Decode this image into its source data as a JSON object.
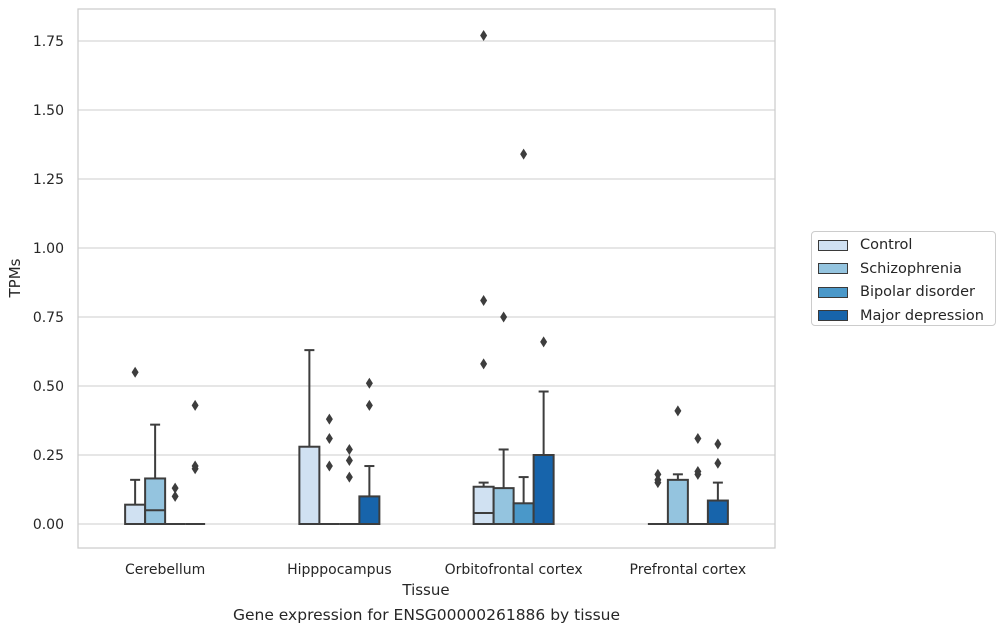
{
  "caption": "Gene expression for ENSG00000261886 by tissue",
  "chart_data": {
    "type": "box",
    "xlabel": "Tissue",
    "ylabel": "TPMs",
    "ylim": [
      -0.085,
      1.86
    ],
    "yticks": [
      0.0,
      0.25,
      0.5,
      0.75,
      1.0,
      1.25,
      1.5,
      1.75
    ],
    "ytick_labels": [
      "0.00",
      "0.25",
      "0.50",
      "0.75",
      "1.00",
      "1.25",
      "1.50",
      "1.75"
    ],
    "grid": "horizontal",
    "legend_position": "right",
    "categories": [
      "Cerebellum",
      "Hipppocampus",
      "Orbitofrontal cortex",
      "Prefrontal cortex"
    ],
    "series": [
      {
        "name": "Control",
        "color": "#d0e1f2",
        "boxes": [
          {
            "q1": 0.0,
            "median": 0.0,
            "q3": 0.07,
            "whisker_low": 0.0,
            "whisker_high": 0.16,
            "outliers": [
              0.55
            ]
          },
          {
            "q1": 0.0,
            "median": 0.0,
            "q3": 0.28,
            "whisker_low": 0.0,
            "whisker_high": 0.63,
            "outliers": []
          },
          {
            "q1": 0.0,
            "median": 0.04,
            "q3": 0.135,
            "whisker_low": 0.0,
            "whisker_high": 0.15,
            "outliers": [
              0.58,
              0.81,
              1.77
            ]
          },
          {
            "q1": 0.0,
            "median": 0.0,
            "q3": 0.0,
            "whisker_low": 0.0,
            "whisker_high": 0.0,
            "outliers": [
              0.15,
              0.16,
              0.18
            ]
          }
        ]
      },
      {
        "name": "Schizophrenia",
        "color": "#94c4df",
        "boxes": [
          {
            "q1": 0.0,
            "median": 0.05,
            "q3": 0.165,
            "whisker_low": 0.0,
            "whisker_high": 0.36,
            "outliers": []
          },
          {
            "q1": 0.0,
            "median": 0.0,
            "q3": 0.0,
            "whisker_low": 0.0,
            "whisker_high": 0.0,
            "outliers": [
              0.21,
              0.31,
              0.38
            ]
          },
          {
            "q1": 0.0,
            "median": 0.0,
            "q3": 0.13,
            "whisker_low": 0.0,
            "whisker_high": 0.27,
            "outliers": [
              0.75
            ]
          },
          {
            "q1": 0.0,
            "median": 0.0,
            "q3": 0.16,
            "whisker_low": 0.0,
            "whisker_high": 0.18,
            "outliers": [
              0.41
            ]
          }
        ]
      },
      {
        "name": "Bipolar disorder",
        "color": "#4a98c9",
        "boxes": [
          {
            "q1": 0.0,
            "median": 0.0,
            "q3": 0.0,
            "whisker_low": 0.0,
            "whisker_high": 0.0,
            "outliers": [
              0.1,
              0.13
            ]
          },
          {
            "q1": 0.0,
            "median": 0.0,
            "q3": 0.0,
            "whisker_low": 0.0,
            "whisker_high": 0.0,
            "outliers": [
              0.17,
              0.23,
              0.27
            ]
          },
          {
            "q1": 0.0,
            "median": 0.0,
            "q3": 0.075,
            "whisker_low": 0.0,
            "whisker_high": 0.17,
            "outliers": [
              1.34
            ]
          },
          {
            "q1": 0.0,
            "median": 0.0,
            "q3": 0.0,
            "whisker_low": 0.0,
            "whisker_high": 0.0,
            "outliers": [
              0.18,
              0.19,
              0.31
            ]
          }
        ]
      },
      {
        "name": "Major depression",
        "color": "#1764ab",
        "boxes": [
          {
            "q1": 0.0,
            "median": 0.0,
            "q3": 0.0,
            "whisker_low": 0.0,
            "whisker_high": 0.0,
            "outliers": [
              0.2,
              0.21,
              0.43
            ]
          },
          {
            "q1": 0.0,
            "median": 0.0,
            "q3": 0.1,
            "whisker_low": 0.0,
            "whisker_high": 0.21,
            "outliers": [
              0.43,
              0.51
            ]
          },
          {
            "q1": 0.0,
            "median": 0.0,
            "q3": 0.25,
            "whisker_low": 0.0,
            "whisker_high": 0.48,
            "outliers": [
              0.66
            ]
          },
          {
            "q1": 0.0,
            "median": 0.0,
            "q3": 0.085,
            "whisker_low": 0.0,
            "whisker_high": 0.15,
            "outliers": [
              0.22,
              0.29
            ]
          }
        ]
      }
    ]
  }
}
